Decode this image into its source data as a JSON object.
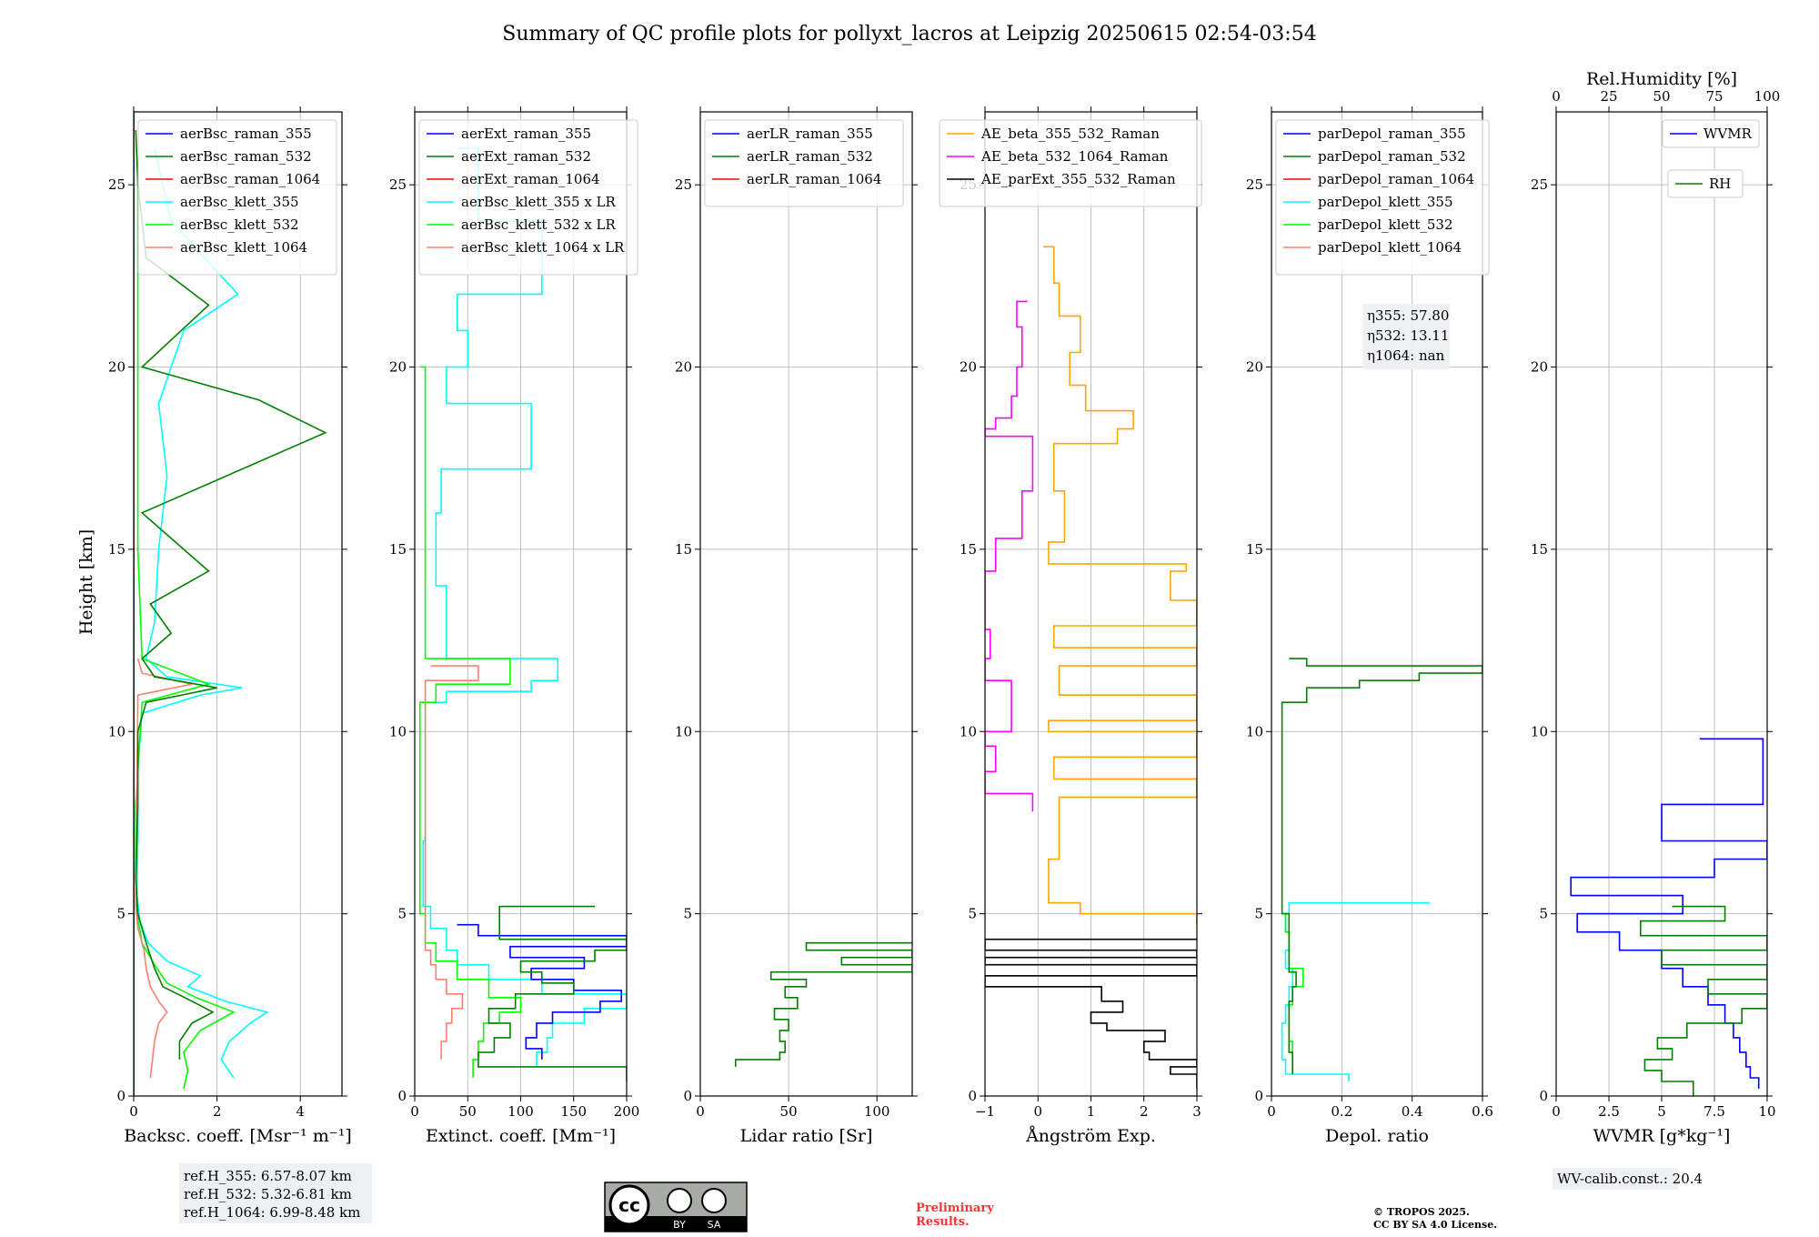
{
  "figure": {
    "title": "Summary of QC profile plots for pollyxt_lacros at Leipzig 20250615 02:54-03:54",
    "ylabel": "Height [km]",
    "license_badge": {
      "cc": "cc",
      "by": "BY",
      "sa": "SA"
    },
    "preliminary": [
      "Preliminary",
      "Results."
    ],
    "copyright": [
      "© TROPOS 2025.",
      "CC BY SA 4.0 License."
    ],
    "ref_heights": [
      "ref.H_355: 6.57-8.07 km",
      "ref.H_532: 5.32-6.81 km",
      "ref.H_1064: 6.99-8.48 km"
    ],
    "wv_calib": "WV-calib.const.: 20.4",
    "eta": [
      "η355: 57.80",
      "η532: 13.11",
      "η1064: nan"
    ],
    "colors": {
      "blue": "#0000ff",
      "green": "#008000",
      "red": "#ff0000",
      "cyan": "#00ffff",
      "lime": "#00ff00",
      "salmon": "#fa8072",
      "orange": "#ffa500",
      "magenta": "#ff00ff",
      "black": "#000000"
    }
  },
  "chart_data": [
    {
      "type": "line",
      "id": "bsc",
      "xlabel": "Backsc. coeff. [Msr⁻¹ m⁻¹]",
      "xlim": [
        0,
        5
      ],
      "xticks": [
        0,
        2,
        4
      ],
      "ylim": [
        0,
        27
      ],
      "yticks": [
        0,
        5,
        10,
        15,
        20,
        25
      ],
      "legend": [
        "aerBsc_raman_355",
        "aerBsc_raman_532",
        "aerBsc_raman_1064",
        "aerBsc_klett_355",
        "aerBsc_klett_532",
        "aerBsc_klett_1064"
      ],
      "series": [
        {
          "name": "aerBsc_klett_355",
          "color": "cyan",
          "y": [
            0.5,
            1.0,
            1.5,
            2.0,
            2.3,
            2.6,
            3.0,
            3.3,
            3.7,
            4.2,
            4.8,
            5.5,
            7,
            9,
            10.5,
            11.0,
            11.2,
            11.5,
            12,
            13,
            15,
            17,
            19,
            21,
            22,
            24,
            26
          ],
          "x": [
            2.4,
            2.1,
            2.3,
            2.8,
            3.2,
            2.2,
            1.3,
            1.6,
            0.8,
            0.35,
            0.15,
            0.08,
            0.1,
            0.1,
            0.2,
            1.6,
            2.6,
            0.8,
            0.3,
            0.5,
            0.6,
            0.8,
            0.6,
            1.2,
            2.5,
            0.9,
            0.5
          ]
        },
        {
          "name": "aerBsc_klett_532",
          "color": "lime",
          "y": [
            0.2,
            0.7,
            1.2,
            1.8,
            2.3,
            2.7,
            3.1,
            3.6,
            4.2,
            5,
            6,
            8,
            10.8,
            11.3,
            12,
            15,
            20,
            25
          ],
          "x": [
            1.2,
            1.3,
            1.2,
            1.6,
            2.4,
            1.5,
            0.8,
            0.5,
            0.2,
            0.08,
            0.05,
            0.05,
            0.2,
            1.8,
            0.2,
            0.1,
            0.1,
            0.1
          ]
        },
        {
          "name": "aerBsc_klett_1064",
          "color": "salmon",
          "y": [
            0.5,
            1.0,
            1.5,
            2.0,
            2.3,
            2.6,
            3.0,
            3.5,
            4.0,
            4.6,
            5.2,
            11,
            11.3,
            11.6,
            12
          ],
          "x": [
            0.4,
            0.45,
            0.5,
            0.6,
            0.8,
            0.6,
            0.4,
            0.3,
            0.25,
            0.1,
            0.05,
            0.1,
            1.4,
            0.2,
            0.1
          ]
        },
        {
          "name": "aerBsc_raman_532",
          "color": "green",
          "y": [
            1.0,
            1.5,
            2.0,
            2.3,
            2.6,
            3.0,
            3.5,
            4.2,
            5.0,
            6,
            8,
            10,
            10.8,
            11.2,
            11.5,
            12,
            12.7,
            13.5,
            14.4,
            16,
            18.2,
            19.1,
            20,
            21.7,
            23,
            25,
            26.5
          ],
          "x": [
            1.1,
            1.1,
            1.4,
            1.9,
            1.4,
            0.7,
            0.5,
            0.3,
            0.1,
            0.05,
            0.1,
            0.1,
            0.3,
            2.0,
            0.5,
            0.2,
            0.9,
            0.4,
            1.8,
            0.2,
            4.6,
            3.0,
            0.2,
            1.8,
            0.3,
            0.1,
            0.05
          ]
        },
        {
          "name": "aerBsc_raman_355",
          "color": "blue",
          "y": [
            0,
            27
          ],
          "x": [
            0.0,
            0.0
          ]
        },
        {
          "name": "aerBsc_raman_1064",
          "color": "red",
          "y": [
            0,
            27
          ],
          "x": [
            0.0,
            0.0
          ]
        }
      ]
    },
    {
      "type": "line",
      "id": "ext",
      "xlabel": "Extinct. coeff. [Mm⁻¹]",
      "xlim": [
        0,
        200
      ],
      "xticks": [
        0,
        50,
        100,
        150,
        200
      ],
      "ylim": [
        0,
        27
      ],
      "yticks": [
        0,
        5,
        10,
        15,
        20,
        25
      ],
      "legend": [
        "aerExt_raman_355",
        "aerExt_raman_532",
        "aerExt_raman_1064",
        "aerBsc_klett_355 x LR",
        "aerBsc_klett_532 x LR",
        "aerBsc_klett_1064 x LR"
      ],
      "series": [
        {
          "name": "aerBsc_klett_355 x LR",
          "color": "cyan",
          "y": [
            0.8,
            1.2,
            1.6,
            2.0,
            2.4,
            2.8,
            3.2,
            3.6,
            4.0,
            4.6,
            5.2,
            7,
            9,
            10.8,
            11.1,
            11.4,
            12,
            14,
            16,
            17.2,
            19,
            20,
            21,
            22,
            24,
            26
          ],
          "x": [
            115,
            125,
            130,
            160,
            200,
            120,
            70,
            40,
            30,
            15,
            8,
            10,
            10,
            30,
            110,
            135,
            30,
            20,
            25,
            110,
            30,
            50,
            40,
            120,
            60,
            40
          ]
        },
        {
          "name": "aerBsc_klett_532 x LR",
          "color": "lime",
          "y": [
            0.5,
            1.0,
            1.5,
            2.0,
            2.3,
            2.7,
            3.2,
            3.7,
            4.2,
            5,
            7,
            10.8,
            11.3,
            12,
            20
          ],
          "x": [
            55,
            60,
            65,
            80,
            100,
            70,
            40,
            20,
            10,
            5,
            5,
            20,
            90,
            10,
            5
          ]
        },
        {
          "name": "aerBsc_klett_1064 x LR",
          "color": "salmon",
          "y": [
            1.0,
            1.5,
            2.0,
            2.4,
            2.8,
            3.2,
            3.6,
            4.0,
            11,
            11.4,
            11.8
          ],
          "x": [
            25,
            30,
            35,
            45,
            30,
            20,
            15,
            10,
            10,
            60,
            15
          ]
        },
        {
          "name": "aerExt_raman_355",
          "color": "blue",
          "y": [
            1.0,
            1.3,
            1.6,
            2.0,
            2.3,
            2.6,
            2.9,
            3.2,
            3.5,
            3.8,
            4.1,
            4.4,
            4.7
          ],
          "x": [
            120,
            105,
            115,
            130,
            175,
            195,
            150,
            110,
            160,
            90,
            200,
            60,
            40
          ]
        },
        {
          "name": "aerExt_raman_532",
          "color": "green",
          "y": [
            0.4,
            0.8,
            1.2,
            1.6,
            2.0,
            2.4,
            2.8,
            3.1,
            3.4,
            3.7,
            4.0,
            4.3,
            5.2
          ],
          "x": [
            200,
            60,
            75,
            90,
            70,
            95,
            150,
            120,
            100,
            170,
            200,
            80,
            170
          ]
        }
      ]
    },
    {
      "type": "line",
      "id": "lr",
      "xlabel": "Lidar ratio [Sr]",
      "xlim": [
        0,
        120
      ],
      "xticks": [
        0,
        50,
        100
      ],
      "ylim": [
        0,
        27
      ],
      "yticks": [
        0,
        5,
        10,
        15,
        20,
        25
      ],
      "legend": [
        "aerLR_raman_355",
        "aerLR_raman_532",
        "aerLR_raman_1064"
      ],
      "series": [
        {
          "name": "aerLR_raman_532",
          "color": "green",
          "y": [
            0.8,
            1.0,
            1.2,
            1.5,
            1.8,
            2.1,
            2.4,
            2.7,
            3.0,
            3.2,
            3.4,
            3.6,
            3.8,
            4.0,
            4.2
          ],
          "x": [
            20,
            45,
            48,
            45,
            50,
            42,
            55,
            48,
            60,
            40,
            120,
            80,
            120,
            60,
            120
          ]
        }
      ]
    },
    {
      "type": "line",
      "id": "ae",
      "xlabel": "Ångström Exp.",
      "xlim": [
        -1,
        3
      ],
      "xticks": [
        -1,
        0,
        1,
        2,
        3
      ],
      "ylim": [
        0,
        27
      ],
      "yticks": [
        0,
        5,
        10,
        15,
        20,
        25
      ],
      "legend": [
        "AE_beta_355_532_Raman",
        "AE_beta_532_1064_Raman",
        "AE_parExt_355_532_Raman"
      ],
      "series": [
        {
          "name": "AE_beta_355_532_Raman",
          "color": "orange",
          "y": [
            4.7,
            5.0,
            5.3,
            6.5,
            8.2,
            8.7,
            9.3,
            10.0,
            10.3,
            11.0,
            11.8,
            12.3,
            12.9,
            13.6,
            14.4,
            14.6,
            15.2,
            16.6,
            17.9,
            18.3,
            18.8,
            19.5,
            20.4,
            21.4,
            22.3,
            23.3
          ],
          "x": [
            3,
            0.8,
            0.2,
            0.4,
            3,
            0.3,
            3,
            0.2,
            3,
            0.4,
            3,
            0.3,
            3,
            2.5,
            2.8,
            0.2,
            0.5,
            0.3,
            1.5,
            1.8,
            0.9,
            0.6,
            0.8,
            0.4,
            0.3,
            0.1
          ]
        },
        {
          "name": "AE_beta_532_1064_Raman",
          "color": "magenta",
          "y": [
            7.8,
            8.3,
            8.9,
            9.6,
            10.0,
            11.4,
            12.0,
            12.8,
            13.6,
            14.4,
            15.3,
            16.6,
            18.1,
            18.3,
            18.6,
            19.2,
            20.0,
            21.1,
            21.8
          ],
          "x": [
            -0.1,
            -1,
            -0.8,
            -1,
            -0.5,
            -1,
            -0.9,
            -1,
            -1,
            -0.8,
            -0.3,
            -0.1,
            -1,
            -0.8,
            -0.5,
            -0.4,
            -0.3,
            -0.4,
            -0.2
          ]
        },
        {
          "name": "AE_parExt_355_532_Raman",
          "color": "black",
          "y": [
            0.2,
            0.6,
            0.8,
            1.0,
            1.2,
            1.5,
            1.8,
            2.0,
            2.3,
            2.6,
            3.0,
            3.3,
            3.6,
            3.8,
            4.0,
            4.3
          ],
          "x": [
            3,
            2.5,
            3,
            2.1,
            2.0,
            2.4,
            1.3,
            1.0,
            1.6,
            1.2,
            -1,
            3,
            -1,
            3,
            -1,
            3
          ]
        }
      ]
    },
    {
      "type": "line",
      "id": "depol",
      "xlabel": "Depol. ratio",
      "xlim": [
        0,
        0.6
      ],
      "xticks": [
        0.0,
        0.2,
        0.4,
        0.6
      ],
      "ylim": [
        0,
        27
      ],
      "yticks": [
        0,
        5,
        10,
        15,
        20,
        25
      ],
      "legend": [
        "parDepol_raman_355",
        "parDepol_raman_532",
        "parDepol_raman_1064",
        "parDepol_klett_355",
        "parDepol_klett_532",
        "parDepol_klett_1064"
      ],
      "series": [
        {
          "name": "parDepol_klett_355",
          "color": "cyan",
          "y": [
            0.4,
            0.6,
            1.0,
            1.5,
            2.0,
            2.5,
            3.0,
            3.5,
            4.0,
            4.5,
            5.0,
            5.3
          ],
          "x": [
            0.22,
            0.04,
            0.03,
            0.03,
            0.04,
            0.05,
            0.06,
            0.04,
            0.05,
            0.04,
            0.05,
            0.45
          ]
        },
        {
          "name": "parDepol_klett_532",
          "color": "lime",
          "y": [
            0.6,
            1.0,
            1.5,
            2.0,
            2.5,
            3.0,
            3.5,
            4.0,
            4.5,
            5.0
          ],
          "x": [
            0.06,
            0.06,
            0.05,
            0.05,
            0.06,
            0.09,
            0.05,
            0.05,
            0.04,
            0.03
          ]
        },
        {
          "name": "parDepol_raman_532",
          "color": "green",
          "y": [
            0.6,
            1.2,
            2.0,
            2.6,
            3.0,
            3.4,
            4.0,
            5.0,
            10.8,
            11.2,
            11.4,
            11.6,
            11.8,
            12.0
          ],
          "x": [
            0.06,
            0.05,
            0.05,
            0.06,
            0.07,
            0.05,
            0.05,
            0.03,
            0.1,
            0.25,
            0.42,
            0.6,
            0.1,
            0.05
          ]
        }
      ]
    },
    {
      "type": "line",
      "id": "wv",
      "xlabel": "WVMR [g*kg⁻¹]",
      "top_xlabel": "Rel.Humidity [%]",
      "xlim": [
        0,
        10
      ],
      "xticks": [
        0.0,
        2.5,
        5.0,
        7.5,
        10.0
      ],
      "top_xlim": [
        0,
        100
      ],
      "top_xticks": [
        0,
        25,
        50,
        75,
        100
      ],
      "ylim": [
        0,
        27
      ],
      "yticks": [
        0,
        5,
        10,
        15,
        20,
        25
      ],
      "legend": [
        "WVMR",
        "RH"
      ],
      "series": [
        {
          "name": "WVMR",
          "color": "blue",
          "y": [
            0.2,
            0.5,
            0.8,
            1.2,
            1.6,
            2.0,
            2.5,
            3.0,
            3.5,
            4.0,
            4.5,
            5.0,
            5.5,
            6.0,
            6.5,
            7.0,
            8.0,
            9.8
          ],
          "x": [
            9.6,
            9.2,
            9.0,
            8.7,
            8.4,
            8.0,
            7.2,
            6.0,
            5.0,
            3.0,
            1.0,
            6.0,
            0.7,
            7.5,
            10,
            5.0,
            9.8,
            6.8
          ]
        },
        {
          "name": "RH",
          "color": "green",
          "y": [
            0.0,
            0.4,
            0.7,
            1.0,
            1.3,
            1.6,
            2.0,
            2.4,
            2.8,
            3.2,
            3.6,
            4.0,
            4.4,
            4.8,
            5.2
          ],
          "x": [
            65,
            50,
            42,
            55,
            48,
            62,
            88,
            100,
            72,
            100,
            50,
            100,
            40,
            80,
            55
          ]
        }
      ]
    }
  ]
}
